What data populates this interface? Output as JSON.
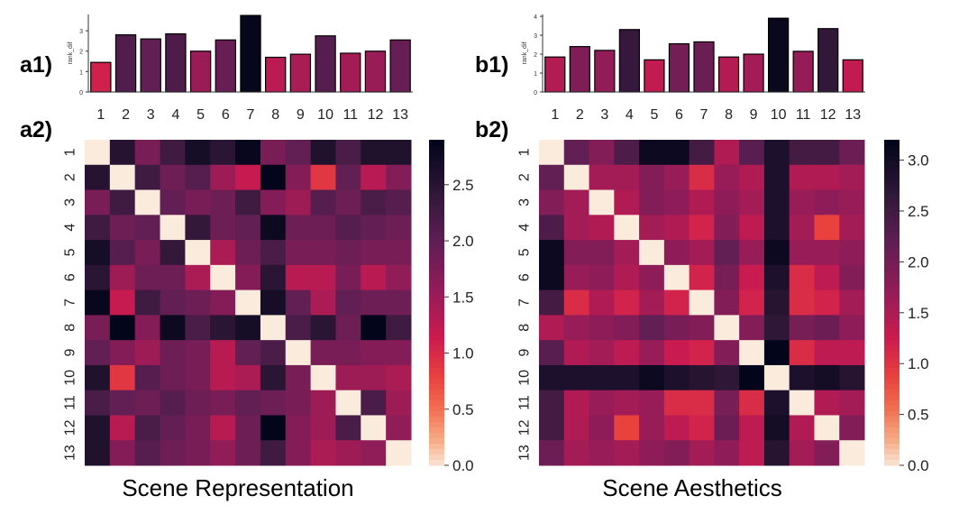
{
  "panels": [
    {
      "key": "a1",
      "label": "a1)"
    },
    {
      "key": "a2",
      "label": "a2)"
    },
    {
      "key": "b1",
      "label": "b1)"
    },
    {
      "key": "b2",
      "label": "b2)"
    }
  ],
  "captions": {
    "left": "Scene Representation",
    "right": "Scene Aesthetics"
  },
  "chart_data": [
    {
      "id": "a1",
      "type": "bar",
      "categories": [
        "1",
        "2",
        "3",
        "4",
        "5",
        "6",
        "7",
        "8",
        "9",
        "10",
        "11",
        "12",
        "13"
      ],
      "values": [
        1.45,
        2.8,
        2.6,
        2.85,
        2.0,
        2.55,
        3.75,
        1.7,
        1.85,
        2.75,
        1.9,
        2.0,
        2.55
      ],
      "ylabel": "rank_dif",
      "ylim": [
        0,
        3.8
      ],
      "yticks": [
        "0",
        "1",
        "2",
        "3"
      ],
      "bar_color_scale": "rocket",
      "color_range": [
        0,
        3.8
      ]
    },
    {
      "id": "b1",
      "type": "bar",
      "categories": [
        "1",
        "2",
        "3",
        "4",
        "5",
        "6",
        "7",
        "8",
        "9",
        "10",
        "11",
        "12",
        "13"
      ],
      "values": [
        1.85,
        2.4,
        2.2,
        3.3,
        1.7,
        2.55,
        2.65,
        1.85,
        2.0,
        3.9,
        2.15,
        3.35,
        1.7
      ],
      "ylabel": "rank_dif",
      "ylim": [
        0,
        4.1
      ],
      "yticks": [
        "0",
        "1",
        "2",
        "3",
        "4"
      ],
      "bar_color_scale": "rocket",
      "color_range": [
        0,
        4.0
      ]
    },
    {
      "id": "a2",
      "type": "heatmap",
      "x_labels": [
        "1",
        "2",
        "3",
        "4",
        "5",
        "6",
        "7",
        "8",
        "9",
        "10",
        "11",
        "12",
        "13"
      ],
      "y_labels": [
        "1",
        "2",
        "3",
        "4",
        "5",
        "6",
        "7",
        "8",
        "9",
        "10",
        "11",
        "12",
        "13"
      ],
      "color_scale": "rocket_r",
      "vmin": 0,
      "vmax": 2.9,
      "colorbar_ticks": [
        "0.0",
        "0.5",
        "1.0",
        "1.5",
        "2.0",
        "2.5"
      ],
      "colorbar_tick_values": [
        0,
        0.5,
        1.0,
        1.5,
        2.0,
        2.5
      ],
      "matrix": [
        [
          0.0,
          2.55,
          1.8,
          2.3,
          2.7,
          2.5,
          2.85,
          1.8,
          2.0,
          2.6,
          2.2,
          2.6,
          2.6
        ],
        [
          2.55,
          0.0,
          2.3,
          1.9,
          2.1,
          1.5,
          1.2,
          2.9,
          1.7,
          0.9,
          2.0,
          1.3,
          1.7
        ],
        [
          1.8,
          2.3,
          0.0,
          2.0,
          1.8,
          1.9,
          2.3,
          1.7,
          1.5,
          2.1,
          1.9,
          2.2,
          2.1
        ],
        [
          2.3,
          1.9,
          2.0,
          0.0,
          2.4,
          1.9,
          2.0,
          2.8,
          1.9,
          1.9,
          2.1,
          2.0,
          1.9
        ],
        [
          2.7,
          2.1,
          1.8,
          2.4,
          0.0,
          1.4,
          1.9,
          2.2,
          1.8,
          1.8,
          1.9,
          1.8,
          1.8
        ],
        [
          2.5,
          1.5,
          1.9,
          1.9,
          1.4,
          0.0,
          1.7,
          2.5,
          1.3,
          1.3,
          1.8,
          1.3,
          1.6
        ],
        [
          2.85,
          1.2,
          2.3,
          2.0,
          1.9,
          1.7,
          0.0,
          2.7,
          2.0,
          1.4,
          2.0,
          1.9,
          1.9
        ],
        [
          1.8,
          2.9,
          1.7,
          2.8,
          2.2,
          2.5,
          2.7,
          0.0,
          2.2,
          2.5,
          1.9,
          2.9,
          2.3
        ],
        [
          2.0,
          1.7,
          1.5,
          1.9,
          1.8,
          1.3,
          2.0,
          2.2,
          0.0,
          1.8,
          1.8,
          1.7,
          1.7
        ],
        [
          2.6,
          0.9,
          2.1,
          1.9,
          1.8,
          1.3,
          1.4,
          2.5,
          1.8,
          0.0,
          1.5,
          1.5,
          1.4
        ],
        [
          2.2,
          2.0,
          1.9,
          2.1,
          1.9,
          1.8,
          2.0,
          1.9,
          1.8,
          1.5,
          0.0,
          2.2,
          1.5
        ],
        [
          2.6,
          1.3,
          2.2,
          2.0,
          1.8,
          1.3,
          1.9,
          2.9,
          1.7,
          1.5,
          2.2,
          0.0,
          1.6
        ],
        [
          2.6,
          1.7,
          2.1,
          1.9,
          1.8,
          1.6,
          1.9,
          2.3,
          1.7,
          1.4,
          1.5,
          1.6,
          0.0
        ]
      ]
    },
    {
      "id": "b2",
      "type": "heatmap",
      "x_labels": [
        "1",
        "2",
        "3",
        "4",
        "5",
        "6",
        "7",
        "8",
        "9",
        "10",
        "11",
        "12",
        "13"
      ],
      "y_labels": [
        "1",
        "2",
        "3",
        "4",
        "5",
        "6",
        "7",
        "8",
        "9",
        "10",
        "11",
        "12",
        "13"
      ],
      "color_scale": "rocket_r",
      "vmin": 0,
      "vmax": 3.2,
      "colorbar_ticks": [
        "0.0",
        "0.5",
        "1.0",
        "1.5",
        "2.0",
        "2.5",
        "3.0"
      ],
      "colorbar_tick_values": [
        0,
        0.5,
        1.0,
        1.5,
        2.0,
        2.5,
        3.0
      ],
      "matrix": [
        [
          0.0,
          2.2,
          1.9,
          2.4,
          3.1,
          3.1,
          2.5,
          1.5,
          2.3,
          2.9,
          2.5,
          2.5,
          2.1
        ],
        [
          2.2,
          0.0,
          1.6,
          1.6,
          1.9,
          1.7,
          1.1,
          1.7,
          1.5,
          2.9,
          1.5,
          1.5,
          1.6
        ],
        [
          1.9,
          1.6,
          0.0,
          1.5,
          1.9,
          1.8,
          1.5,
          1.8,
          1.6,
          2.9,
          1.7,
          1.8,
          1.7
        ],
        [
          2.4,
          1.6,
          1.5,
          0.0,
          1.6,
          1.5,
          1.2,
          1.9,
          1.4,
          2.9,
          1.6,
          0.9,
          1.6
        ],
        [
          3.1,
          1.9,
          1.9,
          1.6,
          0.0,
          1.8,
          1.6,
          2.2,
          1.7,
          3.1,
          1.7,
          1.7,
          1.8
        ],
        [
          3.1,
          1.7,
          1.8,
          1.5,
          1.8,
          0.0,
          1.2,
          2.0,
          1.3,
          2.9,
          1.1,
          1.4,
          1.9
        ],
        [
          2.5,
          1.1,
          1.5,
          1.2,
          1.6,
          1.2,
          0.0,
          1.9,
          1.2,
          2.8,
          1.1,
          1.2,
          1.6
        ],
        [
          1.5,
          1.7,
          1.8,
          1.9,
          2.2,
          2.0,
          1.9,
          0.0,
          1.9,
          2.7,
          2.0,
          2.1,
          1.8
        ],
        [
          2.3,
          1.5,
          1.6,
          1.4,
          1.7,
          1.3,
          1.2,
          1.9,
          0.0,
          3.2,
          1.1,
          1.4,
          1.4
        ],
        [
          2.9,
          2.9,
          2.9,
          2.9,
          3.1,
          2.9,
          2.8,
          2.7,
          3.2,
          0.0,
          2.9,
          3.0,
          2.8
        ],
        [
          2.5,
          1.5,
          1.7,
          1.6,
          1.7,
          1.1,
          1.1,
          2.0,
          1.1,
          2.9,
          0.0,
          1.5,
          1.6
        ],
        [
          2.5,
          1.5,
          1.8,
          0.9,
          1.7,
          1.4,
          1.2,
          2.1,
          1.4,
          3.0,
          1.5,
          0.0,
          1.9
        ],
        [
          2.1,
          1.6,
          1.7,
          1.6,
          1.8,
          1.9,
          1.6,
          1.8,
          1.4,
          2.8,
          1.6,
          1.9,
          0.0
        ]
      ]
    }
  ]
}
